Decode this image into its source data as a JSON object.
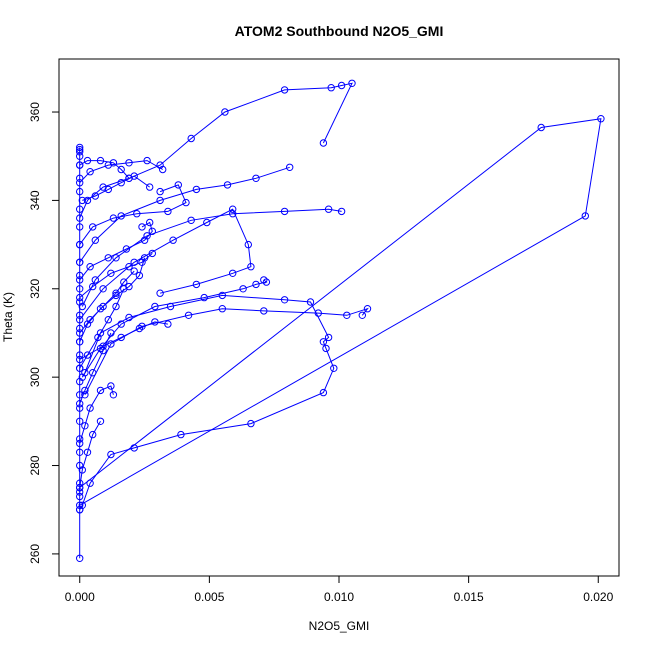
{
  "chart_data": {
    "type": "scatter",
    "title": "ATOM2 Southbound N2O5_GMI",
    "xlabel": "N2O5_GMI",
    "ylabel": "Theta (K)",
    "xlim": [
      -0.0008,
      0.0208
    ],
    "ylim": [
      255,
      372
    ],
    "xticks": [
      0.0,
      0.005,
      0.01,
      0.015,
      0.02
    ],
    "xtick_labels": [
      "0.000",
      "0.005",
      "0.010",
      "0.015",
      "0.020"
    ],
    "yticks": [
      260,
      280,
      300,
      320,
      340,
      360
    ],
    "ytick_labels": [
      "260",
      "280",
      "300",
      "320",
      "340",
      "360"
    ],
    "grid": false,
    "legend": "none",
    "color": "#0000ff",
    "series": [
      {
        "x": [
          0.0,
          0.0,
          0.0,
          0.0,
          0.0,
          0.0,
          0.0,
          0.0,
          0.0,
          0.0,
          0.0,
          0.0,
          0.0,
          0.0,
          0.0,
          0.0,
          0.0,
          0.0,
          0.0,
          0.0,
          0.0,
          0.0,
          0.0,
          0.0,
          0.0,
          0.0,
          0.0,
          0.0,
          0.0,
          0.0
        ],
        "y": [
          259,
          270,
          273,
          276,
          280,
          283,
          286,
          290,
          293,
          296,
          299,
          302,
          305,
          308,
          311,
          314,
          317,
          320,
          323,
          326,
          330,
          334,
          338,
          342,
          345,
          348,
          350,
          351,
          351.5,
          352
        ]
      },
      {
        "x": [
          0.0,
          0.0195,
          0.0201,
          0.0178,
          0.0,
          0.0
        ],
        "y": [
          271,
          336.5,
          358.5,
          356.5,
          275,
          274
        ]
      },
      {
        "x": [
          0.0,
          0.0001,
          0.0004,
          0.0012,
          0.0021,
          0.0039,
          0.0066,
          0.0094,
          0.0098,
          0.0095,
          0.0094,
          0.0096,
          0.0089,
          0.0079,
          0.0055,
          0.0035,
          0.0019,
          0.0008,
          0.0002
        ],
        "y": [
          270,
          271,
          276,
          282.5,
          284,
          287,
          289.5,
          296.5,
          302,
          306.5,
          308,
          309,
          317,
          317.5,
          318.5,
          316,
          313.5,
          310,
          301
        ]
      },
      {
        "x": [
          0.0002,
          0.0012,
          0.0024,
          0.0042,
          0.0055,
          0.0071,
          0.0092,
          0.0103,
          0.0111,
          0.0109
        ],
        "y": [
          296,
          307.5,
          311.5,
          314,
          315.5,
          315,
          314.5,
          314,
          315.5,
          314
        ]
      },
      {
        "x": [
          0.0001,
          0.0008,
          0.0016,
          0.0029,
          0.0048,
          0.0063,
          0.0068,
          0.0072,
          0.0071
        ],
        "y": [
          300,
          306.5,
          312,
          316,
          318,
          320,
          321,
          321.5,
          322
        ]
      },
      {
        "x": [
          0.0,
          0.0009,
          0.0021,
          0.0036,
          0.0049,
          0.0059,
          0.0065,
          0.0066,
          0.0059,
          0.0045,
          0.0031
        ],
        "y": [
          313,
          320,
          326,
          331,
          335,
          338,
          330,
          325,
          323.5,
          321,
          319
        ]
      },
      {
        "x": [
          0.0001,
          0.0006,
          0.0014,
          0.0026,
          0.0043,
          0.0059,
          0.0079,
          0.0096,
          0.0101
        ],
        "y": [
          316,
          322,
          327,
          332,
          335.5,
          337,
          337.5,
          338,
          337.5
        ]
      },
      {
        "x": [
          0.0,
          0.0006,
          0.0016,
          0.0031,
          0.0045,
          0.0057,
          0.0068,
          0.0081
        ],
        "y": [
          326,
          331,
          336.5,
          340,
          342.5,
          343.5,
          345,
          347.5
        ]
      },
      {
        "x": [
          0.0,
          0.0003,
          0.0009,
          0.0019,
          0.0031,
          0.0043,
          0.0056,
          0.0079,
          0.0097,
          0.0101,
          0.0105,
          0.0094
        ],
        "y": [
          336,
          340,
          343,
          345,
          348,
          354,
          360,
          365,
          365.5,
          366,
          366.5,
          353
        ]
      },
      {
        "x": [
          0.0,
          0.0004,
          0.0011,
          0.0019,
          0.0026,
          0.0032
        ],
        "y": [
          344,
          346.5,
          348,
          348.5,
          349,
          347
        ]
      },
      {
        "x": [
          0.0,
          0.0003,
          0.0008,
          0.0013,
          0.0016,
          0.0019
        ],
        "y": [
          348,
          349,
          349,
          348.5,
          347,
          345
        ]
      },
      {
        "x": [
          0.0,
          0.0005,
          0.0013,
          0.0022,
          0.0034,
          0.0041,
          0.0038,
          0.0031
        ],
        "y": [
          330,
          334,
          336,
          337,
          337.5,
          339.5,
          343.5,
          342
        ]
      },
      {
        "x": [
          0.0,
          0.0004,
          0.0011,
          0.0018,
          0.0025,
          0.0028,
          0.0027,
          0.0024
        ],
        "y": [
          322,
          325,
          327,
          329,
          331,
          333,
          335,
          334
        ]
      },
      {
        "x": [
          0.0,
          0.0003,
          0.0008,
          0.0014,
          0.0019,
          0.0023,
          0.0025
        ],
        "y": [
          308,
          312,
          315.5,
          318.5,
          320.5,
          323,
          327
        ]
      },
      {
        "x": [
          0.0,
          0.0003,
          0.0007,
          0.0011,
          0.0014,
          0.0017
        ],
        "y": [
          302,
          305,
          309,
          313,
          316,
          320
        ]
      },
      {
        "x": [
          0.0,
          0.0002,
          0.0005,
          0.0009,
          0.0012
        ],
        "y": [
          294,
          297,
          301,
          306,
          310
        ]
      },
      {
        "x": [
          0.0,
          0.0002,
          0.0004,
          0.0008,
          0.0012,
          0.0013
        ],
        "y": [
          285,
          289,
          293,
          297,
          298,
          296
        ]
      },
      {
        "x": [
          0.0,
          0.0001,
          0.0003,
          0.0005,
          0.0008
        ],
        "y": [
          275,
          279,
          283,
          287,
          290
        ]
      },
      {
        "x": [
          0.0,
          0.0005,
          0.0012,
          0.0019,
          0.0024,
          0.0028
        ],
        "y": [
          318,
          320.5,
          323.5,
          325,
          326,
          328
        ]
      },
      {
        "x": [
          0.0,
          0.0004,
          0.0009,
          0.0014,
          0.0017,
          0.0021
        ],
        "y": [
          310,
          313,
          316,
          319,
          321.5,
          324
        ]
      },
      {
        "x": [
          0.0001,
          0.0006,
          0.0011,
          0.0016,
          0.0021,
          0.0027
        ],
        "y": [
          340,
          341,
          342.5,
          344,
          345.5,
          343
        ]
      },
      {
        "x": [
          0.0,
          0.0009,
          0.0016,
          0.0023,
          0.0029,
          0.0034
        ],
        "y": [
          304,
          307,
          309,
          311,
          312.5,
          312
        ]
      }
    ]
  }
}
